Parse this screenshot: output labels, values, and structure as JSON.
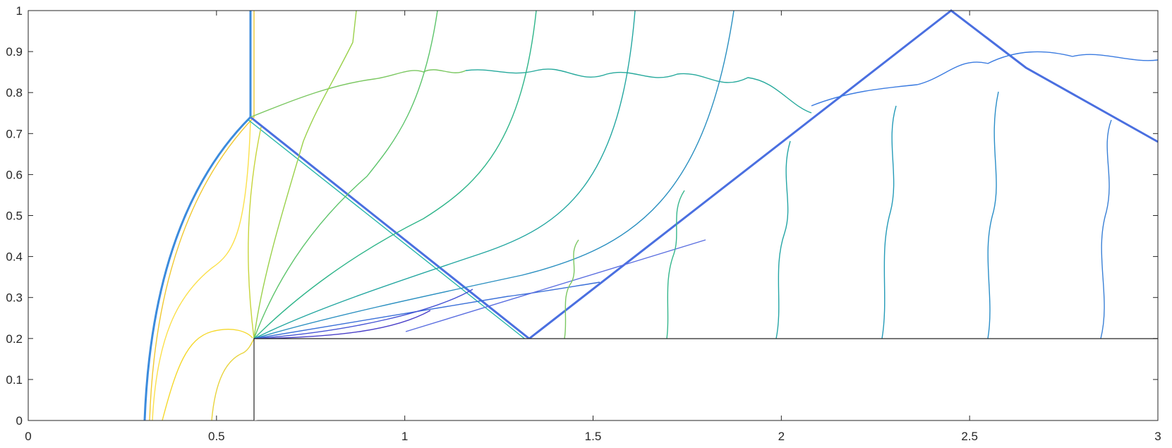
{
  "chart_data": {
    "type": "contour",
    "xlim": [
      0,
      3
    ],
    "ylim": [
      0,
      1
    ],
    "xticks": [
      0,
      0.5,
      1,
      1.5,
      2,
      2.5,
      3
    ],
    "yticks": [
      0,
      0.1,
      0.2,
      0.3,
      0.4,
      0.5,
      0.6,
      0.7,
      0.8,
      0.9,
      1
    ]
  }
}
